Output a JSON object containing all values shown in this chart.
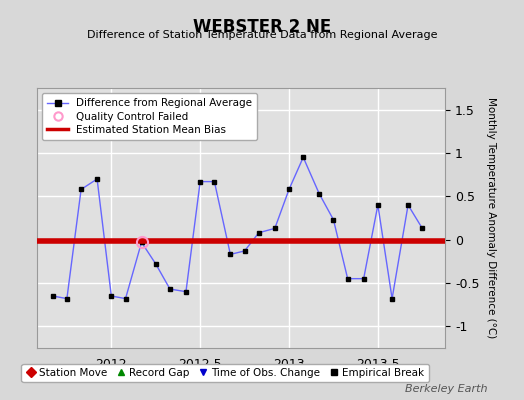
{
  "title": "WEBSTER 2 NE",
  "subtitle": "Difference of Station Temperature Data from Regional Average",
  "ylabel": "Monthly Temperature Anomaly Difference (°C)",
  "ylim": [
    -1.25,
    1.75
  ],
  "xlim": [
    2011.58,
    2013.88
  ],
  "bias_y": -0.02,
  "line_color": "#6666ff",
  "dot_color": "#000000",
  "bias_color": "#cc0000",
  "qc_failed_x": [
    2012.17
  ],
  "qc_failed_y": [
    -0.03
  ],
  "x_data": [
    2011.67,
    2011.75,
    2011.83,
    2011.92,
    2012.0,
    2012.08,
    2012.17,
    2012.25,
    2012.33,
    2012.42,
    2012.5,
    2012.58,
    2012.67,
    2012.75,
    2012.83,
    2012.92,
    2013.0,
    2013.08,
    2013.17,
    2013.25,
    2013.33,
    2013.42,
    2013.5,
    2013.58,
    2013.67,
    2013.75
  ],
  "y_data": [
    -0.65,
    -0.68,
    0.58,
    0.7,
    -0.65,
    -0.68,
    -0.03,
    -0.28,
    -0.57,
    -0.6,
    0.67,
    0.67,
    -0.17,
    -0.13,
    0.08,
    0.13,
    0.58,
    0.95,
    0.53,
    0.23,
    -0.45,
    -0.45,
    0.4,
    -0.68,
    0.4,
    0.13
  ],
  "background_color": "#e0e0e0",
  "grid_color": "#ffffff",
  "yticks": [
    -1.0,
    -0.5,
    0.0,
    0.5,
    1.0,
    1.5
  ],
  "ytick_labels": [
    "-1",
    "-0.5",
    "0",
    "0.5",
    "1",
    "1.5"
  ],
  "xticks": [
    2012.0,
    2012.5,
    2013.0,
    2013.5
  ],
  "xtick_labels": [
    "2012",
    "2012.5",
    "2013",
    "2013.5"
  ],
  "watermark": "Berkeley Earth",
  "legend1_labels": [
    "Difference from Regional Average",
    "Quality Control Failed",
    "Estimated Station Mean Bias"
  ],
  "legend2_labels": [
    "Station Move",
    "Record Gap",
    "Time of Obs. Change",
    "Empirical Break"
  ]
}
